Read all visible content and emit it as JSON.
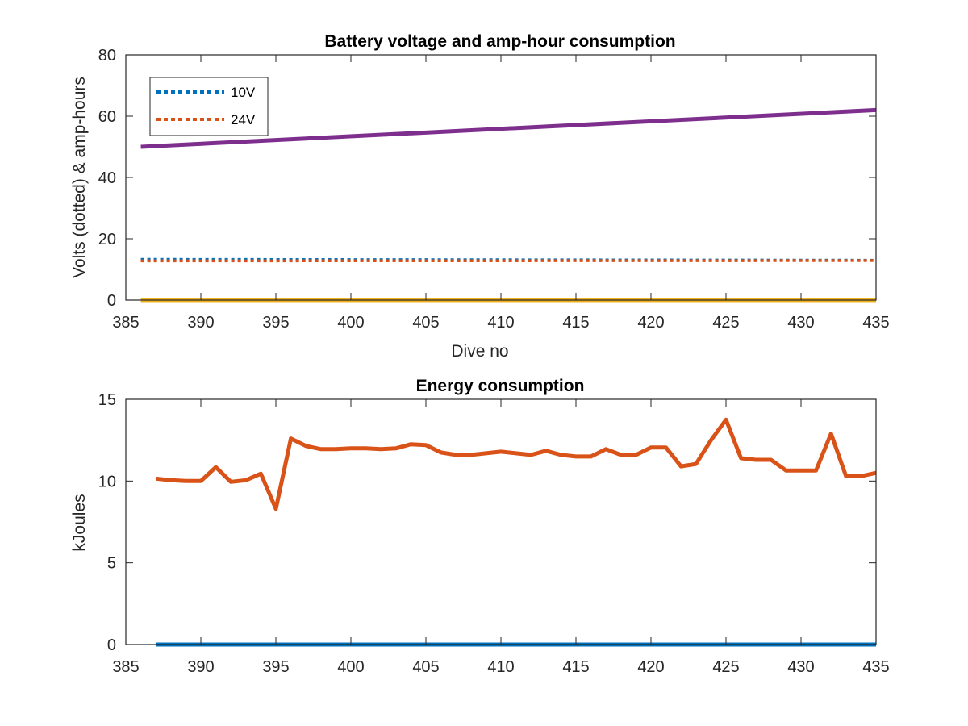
{
  "colors": {
    "blue": "#0072BD",
    "orange": "#D95319",
    "yellow": "#EDB120",
    "purple": "#7E2F8E",
    "axes": "#262626"
  },
  "chart_data": [
    {
      "type": "line",
      "title": "Battery voltage and amp-hour consumption",
      "xlabel": "Dive no",
      "ylabel": "Volts (dotted) & amp-hours",
      "xlim": [
        385,
        435
      ],
      "ylim": [
        0,
        80
      ],
      "xticks": [
        385,
        390,
        395,
        400,
        405,
        410,
        415,
        420,
        425,
        430,
        435
      ],
      "yticks": [
        0,
        20,
        40,
        60,
        80
      ],
      "grid": false,
      "legend_position": "top-left",
      "series": [
        {
          "name": "10V",
          "style": "dotted",
          "color": "#0072BD",
          "x": [
            386,
            435
          ],
          "y": [
            13.3,
            13.0
          ]
        },
        {
          "name": "24V",
          "style": "dotted",
          "color": "#D95319",
          "x": [
            386,
            435
          ],
          "y": [
            12.8,
            12.9
          ]
        },
        {
          "style": "solid",
          "color": "#EDB120",
          "x": [
            386,
            435
          ],
          "y": [
            0,
            0
          ]
        },
        {
          "style": "solid",
          "color": "#7E2F8E",
          "x": [
            386,
            435
          ],
          "y": [
            50,
            62
          ]
        }
      ]
    },
    {
      "type": "line",
      "title": "Energy consumption",
      "xlabel": "",
      "ylabel": "kJoules",
      "xlim": [
        385,
        435
      ],
      "ylim": [
        0,
        15
      ],
      "xticks": [
        385,
        390,
        395,
        400,
        405,
        410,
        415,
        420,
        425,
        430,
        435
      ],
      "yticks": [
        0,
        5,
        10,
        15
      ],
      "grid": false,
      "series": [
        {
          "style": "solid",
          "color": "#0072BD",
          "x": [
            387,
            435
          ],
          "y": [
            0,
            0
          ]
        },
        {
          "style": "solid",
          "color": "#D95319",
          "x": [
            387,
            388,
            389,
            390,
            391,
            392,
            393,
            394,
            395,
            396,
            397,
            398,
            399,
            400,
            401,
            402,
            403,
            404,
            405,
            406,
            407,
            408,
            409,
            410,
            411,
            412,
            413,
            414,
            415,
            416,
            417,
            418,
            419,
            420,
            421,
            422,
            423,
            424,
            425,
            426,
            427,
            428,
            429,
            430,
            431,
            432,
            433,
            434,
            435
          ],
          "y": [
            10.15,
            10.05,
            10.0,
            10.0,
            10.85,
            9.95,
            10.05,
            10.45,
            8.3,
            12.6,
            12.15,
            11.95,
            11.95,
            12.0,
            12.0,
            11.95,
            12.0,
            12.25,
            12.2,
            11.75,
            11.6,
            11.6,
            11.7,
            11.8,
            11.7,
            11.6,
            11.85,
            11.6,
            11.5,
            11.5,
            11.95,
            11.6,
            11.6,
            12.05,
            12.05,
            10.9,
            11.05,
            12.5,
            13.75,
            11.4,
            11.3,
            11.3,
            10.65,
            10.65,
            10.65,
            12.9,
            10.3,
            10.3,
            10.5
          ]
        }
      ]
    }
  ]
}
